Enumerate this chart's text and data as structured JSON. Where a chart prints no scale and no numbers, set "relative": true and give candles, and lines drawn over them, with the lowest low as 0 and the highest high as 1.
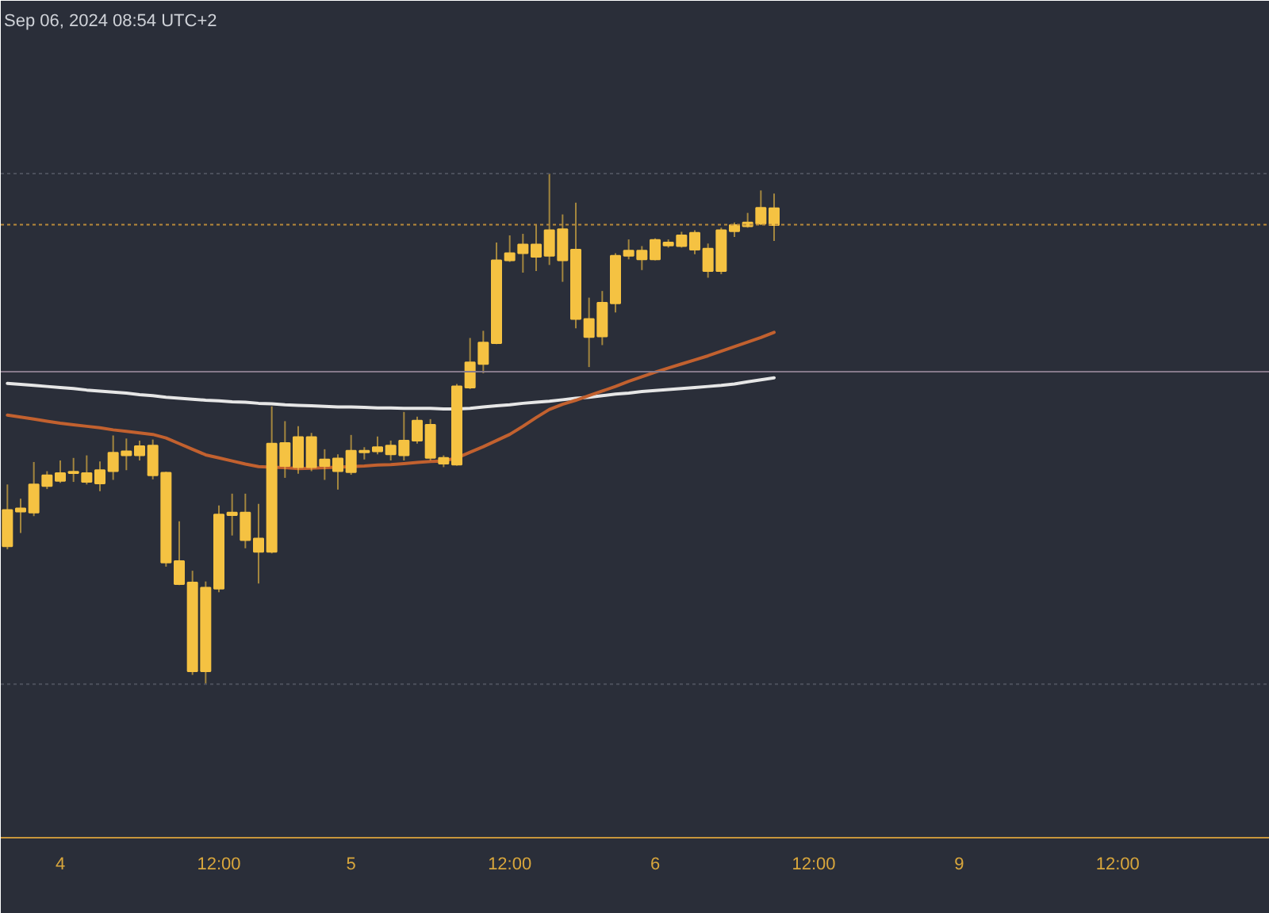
{
  "chart_data": {
    "type": "candlestick",
    "title": "Sep 06, 2024 08:54 UTC+2",
    "relative": true,
    "color": "#f5c242",
    "categories": [
      null,
      null,
      null,
      null,
      "4",
      null,
      null,
      null,
      null,
      null,
      null,
      null,
      null,
      null,
      null,
      null,
      "12:00",
      null,
      null,
      null,
      null,
      null,
      null,
      null,
      null,
      null,
      "5",
      null,
      null,
      null,
      null,
      null,
      null,
      null,
      null,
      null,
      null,
      null,
      "12:00",
      null,
      null,
      null,
      null,
      null,
      null,
      null,
      null,
      null,
      null,
      "6",
      null,
      null,
      null,
      null,
      null,
      null,
      null,
      null,
      null,
      null,
      null,
      "12:00",
      null,
      null,
      null,
      null,
      null,
      null,
      null,
      null,
      null,
      null,
      "9",
      null,
      null,
      null,
      null,
      null,
      null,
      null,
      null,
      null,
      null,
      null,
      "12:00",
      null,
      null,
      null,
      null,
      null,
      null,
      null,
      null,
      null,
      null,
      null
    ],
    "ohlc": [
      [
        0.27,
        0.391,
        0.264,
        0.341
      ],
      [
        0.338,
        0.363,
        0.296,
        0.344
      ],
      [
        0.336,
        0.435,
        0.329,
        0.391
      ],
      [
        0.388,
        0.417,
        0.382,
        0.409
      ],
      [
        0.398,
        0.438,
        0.394,
        0.413
      ],
      [
        0.413,
        0.443,
        0.396,
        0.416
      ],
      [
        0.396,
        0.448,
        0.391,
        0.413
      ],
      [
        0.393,
        0.436,
        0.378,
        0.419
      ],
      [
        0.417,
        0.487,
        0.4,
        0.453
      ],
      [
        0.448,
        0.481,
        0.419,
        0.456
      ],
      [
        0.448,
        0.477,
        0.438,
        0.466
      ],
      [
        0.409,
        0.479,
        0.401,
        0.467
      ],
      [
        0.238,
        0.416,
        0.23,
        0.414
      ],
      [
        0.196,
        0.319,
        0.194,
        0.241
      ],
      [
        0.025,
        0.222,
        0.018,
        0.199
      ],
      [
        0.025,
        0.201,
        0.0,
        0.189
      ],
      [
        0.187,
        0.35,
        0.18,
        0.332
      ],
      [
        0.331,
        0.373,
        0.291,
        0.336
      ],
      [
        0.282,
        0.373,
        0.266,
        0.336
      ],
      [
        0.259,
        0.353,
        0.197,
        0.285
      ],
      [
        0.259,
        0.544,
        0.256,
        0.471
      ],
      [
        0.427,
        0.515,
        0.404,
        0.472
      ],
      [
        0.425,
        0.505,
        0.412,
        0.484
      ],
      [
        0.425,
        0.492,
        0.417,
        0.484
      ],
      [
        0.427,
        0.46,
        0.4,
        0.44
      ],
      [
        0.417,
        0.45,
        0.381,
        0.442
      ],
      [
        0.415,
        0.488,
        0.41,
        0.457
      ],
      [
        0.454,
        0.464,
        0.44,
        0.457
      ],
      [
        0.456,
        0.485,
        0.45,
        0.464
      ],
      [
        0.45,
        0.477,
        0.438,
        0.467
      ],
      [
        0.448,
        0.533,
        0.438,
        0.477
      ],
      [
        0.477,
        0.524,
        0.471,
        0.516
      ],
      [
        0.443,
        0.519,
        0.438,
        0.508
      ],
      [
        0.432,
        0.448,
        0.425,
        0.443
      ],
      [
        0.43,
        0.588,
        0.428,
        0.583
      ],
      [
        0.581,
        0.678,
        0.578,
        0.63
      ],
      [
        0.627,
        0.692,
        0.609,
        0.669
      ],
      [
        0.668,
        0.865,
        0.666,
        0.83
      ],
      [
        0.83,
        0.879,
        0.827,
        0.844
      ],
      [
        0.844,
        0.882,
        0.806,
        0.861
      ],
      [
        0.837,
        0.899,
        0.809,
        0.861
      ],
      [
        0.839,
        1.0,
        0.821,
        0.889
      ],
      [
        0.83,
        0.92,
        0.788,
        0.891
      ],
      [
        0.715,
        0.943,
        0.697,
        0.851
      ],
      [
        0.68,
        0.757,
        0.621,
        0.715
      ],
      [
        0.681,
        0.77,
        0.664,
        0.747
      ],
      [
        0.746,
        0.844,
        0.728,
        0.839
      ],
      [
        0.839,
        0.871,
        0.832,
        0.849
      ],
      [
        0.832,
        0.858,
        0.811,
        0.849
      ],
      [
        0.832,
        0.873,
        0.83,
        0.87
      ],
      [
        0.859,
        0.871,
        0.855,
        0.865
      ],
      [
        0.858,
        0.886,
        0.855,
        0.879
      ],
      [
        0.851,
        0.889,
        0.842,
        0.884
      ],
      [
        0.809,
        0.863,
        0.796,
        0.853
      ],
      [
        0.809,
        0.894,
        0.803,
        0.889
      ],
      [
        0.887,
        0.904,
        0.876,
        0.899
      ],
      [
        0.897,
        0.923,
        0.894,
        0.904
      ],
      [
        0.902,
        0.967,
        0.899,
        0.933
      ],
      [
        0.899,
        0.961,
        0.868,
        0.932
      ],
      null,
      null,
      null,
      null,
      null,
      null,
      null,
      null,
      null,
      null,
      null,
      null,
      null,
      null,
      null,
      null,
      null,
      null,
      null,
      null,
      null,
      null,
      null,
      null,
      null,
      null,
      null,
      null,
      null,
      null,
      null,
      null,
      null,
      null,
      null,
      null,
      null
    ],
    "series": [
      {
        "type": "line",
        "color": "#e6e6e6",
        "values": [
          0.589,
          0.587,
          0.585,
          0.583,
          0.581,
          0.579,
          0.576,
          0.574,
          0.572,
          0.57,
          0.567,
          0.565,
          0.562,
          0.56,
          0.558,
          0.556,
          0.555,
          0.553,
          0.552,
          0.55,
          0.549,
          0.547,
          0.546,
          0.545,
          0.544,
          0.543,
          0.543,
          0.542,
          0.541,
          0.541,
          0.54,
          0.54,
          0.54,
          0.539,
          0.539,
          0.54,
          0.543,
          0.545,
          0.547,
          0.55,
          0.552,
          0.554,
          0.557,
          0.56,
          0.562,
          0.565,
          0.568,
          0.57,
          0.573,
          0.575,
          0.577,
          0.579,
          0.581,
          0.583,
          0.585,
          0.588,
          0.592,
          0.596,
          0.6,
          null,
          null,
          null,
          null,
          null,
          null,
          null,
          null,
          null,
          null,
          null,
          null,
          null,
          null,
          null,
          null,
          null,
          null,
          null,
          null,
          null,
          null,
          null,
          null,
          null,
          null,
          null,
          null,
          null,
          null,
          null,
          null,
          null,
          null,
          null,
          null,
          null
        ]
      },
      {
        "type": "line",
        "color": "#c2612f",
        "values": [
          0.527,
          0.523,
          0.519,
          0.515,
          0.511,
          0.508,
          0.505,
          0.502,
          0.498,
          0.495,
          0.492,
          0.489,
          0.482,
          0.471,
          0.46,
          0.449,
          0.443,
          0.437,
          0.431,
          0.426,
          0.425,
          0.424,
          0.422,
          0.423,
          0.424,
          0.425,
          0.426,
          0.427,
          0.429,
          0.43,
          0.432,
          0.434,
          0.436,
          0.437,
          0.443,
          0.454,
          0.465,
          0.477,
          0.489,
          0.505,
          0.522,
          0.538,
          0.548,
          0.556,
          0.565,
          0.574,
          0.583,
          0.593,
          0.602,
          0.611,
          0.619,
          0.627,
          0.635,
          0.643,
          0.652,
          0.661,
          0.67,
          0.679,
          0.689,
          null,
          null,
          null,
          null,
          null,
          null,
          null,
          null,
          null,
          null,
          null,
          null,
          null,
          null,
          null,
          null,
          null,
          null,
          null,
          null,
          null,
          null,
          null,
          null,
          null,
          null,
          null,
          null,
          null,
          null,
          null,
          null,
          null,
          null,
          null,
          null,
          null
        ]
      }
    ],
    "ref_lines": [
      {
        "axis": "y",
        "value": 1.0,
        "color": "#4c505c",
        "line_style": "dotted"
      },
      {
        "axis": "y",
        "value": 0.0,
        "color": "#4c505c",
        "line_style": "dotted"
      },
      {
        "axis": "y",
        "value": 0.9,
        "color": "#b8893a",
        "line_style": "dotted"
      },
      {
        "axis": "y",
        "value": 0.612,
        "color": "#86798a",
        "line_style": "solid"
      }
    ]
  }
}
